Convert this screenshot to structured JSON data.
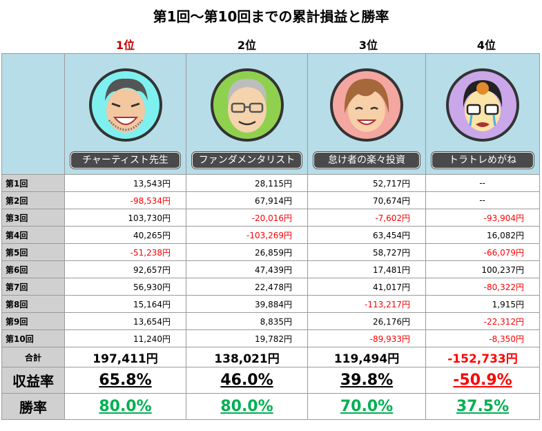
{
  "title": "第1回～第10回までの累計損益と勝率",
  "players": [
    {
      "rank": "1位",
      "name": "チャーティスト先生",
      "avatar": "smiling-bearded-man-icon",
      "bg": "#7ff0f0"
    },
    {
      "rank": "2位",
      "name": "ファンダメンタリスト",
      "avatar": "gray-haired-man-glasses-icon",
      "bg": "#8fd14f"
    },
    {
      "rank": "3位",
      "name": "怠け者の楽々投資",
      "avatar": "brown-haired-man-icon",
      "bg": "#f4a6a0"
    },
    {
      "rank": "4位",
      "name": "トラトレめがね",
      "avatar": "crying-man-glasses-icon",
      "bg": "#c9a7e9"
    }
  ],
  "rounds": [
    {
      "label": "第1回",
      "values": [
        "13,543円",
        "28,115円",
        "52,717円",
        "--"
      ]
    },
    {
      "label": "第2回",
      "values": [
        "-98,534円",
        "67,914円",
        "70,674円",
        "--"
      ]
    },
    {
      "label": "第3回",
      "values": [
        "103,730円",
        "-20,016円",
        "-7,602円",
        "-93,904円"
      ]
    },
    {
      "label": "第4回",
      "values": [
        "40,265円",
        "-103,269円",
        "63,454円",
        "16,082円"
      ]
    },
    {
      "label": "第5回",
      "values": [
        "-51,238円",
        "26,859円",
        "58,727円",
        "-66,079円"
      ]
    },
    {
      "label": "第6回",
      "values": [
        "92,657円",
        "47,439円",
        "17,481円",
        "100,237円"
      ]
    },
    {
      "label": "第7回",
      "values": [
        "56,930円",
        "22,478円",
        "41,017円",
        "-80,322円"
      ]
    },
    {
      "label": "第8回",
      "values": [
        "15,164円",
        "39,884円",
        "-113,217円",
        "1,915円"
      ]
    },
    {
      "label": "第9回",
      "values": [
        "13,654円",
        "8,835円",
        "26,176円",
        "-22,312円"
      ]
    },
    {
      "label": "第10回",
      "values": [
        "11,240円",
        "19,782円",
        "-89,933円",
        "-8,350円"
      ]
    }
  ],
  "totals": {
    "label": "合計",
    "values": [
      "197,411円",
      "138,021円",
      "119,494円",
      "-152,733円"
    ]
  },
  "returns": {
    "label": "収益率",
    "values": [
      "65.8%",
      "46.0%",
      "39.8%",
      "-50.9%"
    ]
  },
  "winrate": {
    "label": "勝率",
    "values": [
      "80.0%",
      "80.0%",
      "70.0%",
      "37.5%"
    ]
  }
}
